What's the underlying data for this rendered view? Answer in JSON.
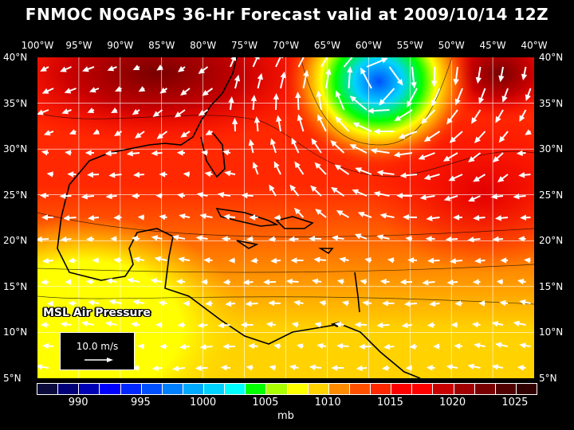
{
  "title": "FNMOC NOGAPS 36-Hr Forecast valid at 2009/10/14 12Z",
  "lon_labels": [
    "100°W",
    "95°W",
    "90°W",
    "85°W",
    "80°W",
    "75°W",
    "70°W",
    "65°W",
    "60°W",
    "55°W",
    "50°W",
    "45°W",
    "40°W"
  ],
  "lat_labels": [
    "40°N",
    "35°N",
    "30°N",
    "25°N",
    "20°N",
    "15°N",
    "10°N",
    "5°N"
  ],
  "field_label": "MSL Air Pressure",
  "vector_reference": "10.0 m/s",
  "colorbar": {
    "colors": [
      "#0a0a3c",
      "#000078",
      "#0000b4",
      "#0000ff",
      "#0028ff",
      "#0050ff",
      "#0080ff",
      "#00aaff",
      "#00d2ff",
      "#00ffff",
      "#00ff00",
      "#aaff00",
      "#ffff00",
      "#ffd200",
      "#ff8c00",
      "#ff5000",
      "#ff2800",
      "#ff0000",
      "#ff0000",
      "#c80000",
      "#a00000",
      "#780000",
      "#500000",
      "#300000"
    ],
    "labels": [
      "990",
      "995",
      "1000",
      "1005",
      "1010",
      "1015",
      "1020",
      "1025"
    ],
    "units": "mb"
  }
}
